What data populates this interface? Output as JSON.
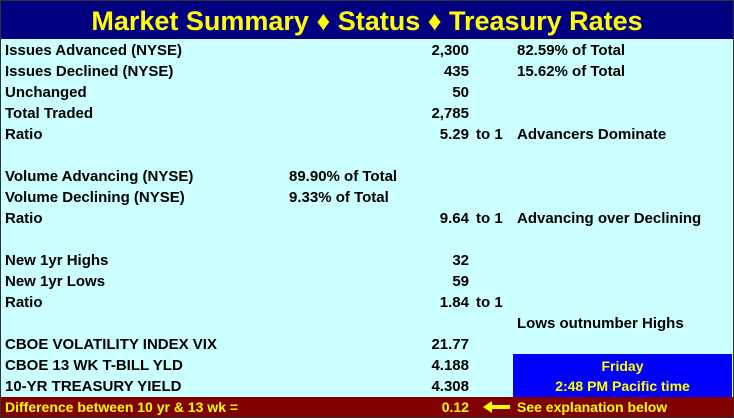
{
  "header": {
    "title": "Market Summary ♦ Status ♦ Treasury Rates"
  },
  "sections": [
    {
      "rows": [
        {
          "label": "Issues Advanced (NYSE)",
          "value": "2,300",
          "note": "82.59% of Total"
        },
        {
          "label": "Issues Declined (NYSE)",
          "value": "435",
          "note": "15.62% of Total"
        },
        {
          "label": "Unchanged",
          "value": "50"
        },
        {
          "label": "Total Traded",
          "value": "2,785"
        },
        {
          "label": "Ratio",
          "value": "5.29",
          "ratio": "to 1",
          "note": "Advancers Dominate"
        }
      ]
    },
    {
      "rows": [
        {
          "label": "Volume Advancing (NYSE)",
          "pct": "89.90% of Total"
        },
        {
          "label": "Volume Declining (NYSE)",
          "pct": "9.33% of Total"
        },
        {
          "label": "Ratio",
          "value": "9.64",
          "ratio": "to 1",
          "note": "Advancing over Declining"
        }
      ]
    },
    {
      "rows": [
        {
          "label": "New 1yr Highs",
          "value": "32"
        },
        {
          "label": "New 1yr Lows",
          "value": "59"
        },
        {
          "label": "Ratio",
          "value": "1.84",
          "ratio": "to 1"
        },
        {
          "note": "Lows outnumber Highs"
        },
        {
          "label": "CBOE VOLATILITY INDEX VIX",
          "value": "21.77"
        },
        {
          "label": "CBOE 13 WK T-BILL YLD",
          "value": "4.188"
        },
        {
          "label": "10-YR TREASURY YIELD",
          "value": "4.308"
        }
      ]
    }
  ],
  "clock": {
    "day": "Friday",
    "time": "2:48 PM Pacific time"
  },
  "footer": {
    "label": "Difference between 10 yr & 13 wk =",
    "value": "0.12",
    "note": "See explanation below"
  }
}
